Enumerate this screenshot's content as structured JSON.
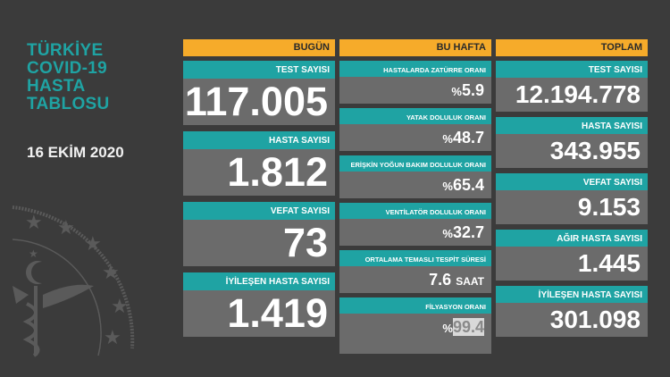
{
  "title": [
    "TÜRKİYE",
    "COVID-19",
    "HASTA",
    "TABLOSU"
  ],
  "date": "16 EKİM 2020",
  "colors": {
    "teal": "#1fa3a3",
    "orange": "#f6ab2a",
    "panel": "#6b6b6b",
    "background": "#3b3b3b"
  },
  "bugun": {
    "header": "BUGÜN",
    "items": [
      {
        "label": "TEST SAYISI",
        "value": "117.005"
      },
      {
        "label": "HASTA SAYISI",
        "value": "1.812"
      },
      {
        "label": "VEFAT SAYISI",
        "value": "73"
      },
      {
        "label": "İYİLEŞEN HASTA SAYISI",
        "value": "1.419"
      }
    ]
  },
  "bu_hafta": {
    "header": "BU HAFTA",
    "items": [
      {
        "label": "HASTALARDA ZATÜRRE ORANI",
        "prefix": "%",
        "value": "5.9",
        "suffix": ""
      },
      {
        "label": "YATAK DOLULUK ORANI",
        "prefix": "%",
        "value": "48.7",
        "suffix": ""
      },
      {
        "label": "ERİŞKİN YOĞUN BAKIM DOLULUK ORANI",
        "prefix": "%",
        "value": "65.4",
        "suffix": ""
      },
      {
        "label": "VENTİLATÖR DOLULUK ORANI",
        "prefix": "%",
        "value": "32.7",
        "suffix": ""
      },
      {
        "label": "ORTALAMA TEMASLI TESPİT SÜRESİ",
        "prefix": "",
        "value": "7.6",
        "suffix": "SAAT"
      },
      {
        "label": "FİLYASYON ORANI",
        "prefix": "%",
        "value": "99.4",
        "suffix": ""
      }
    ]
  },
  "toplam": {
    "header": "TOPLAM",
    "items": [
      {
        "label": "TEST SAYISI",
        "value": "12.194.778"
      },
      {
        "label": "HASTA SAYISI",
        "value": "343.955"
      },
      {
        "label": "VEFAT SAYISI",
        "value": "9.153"
      },
      {
        "label": "AĞIR HASTA SAYISI",
        "value": "1.445"
      },
      {
        "label": "İYİLEŞEN HASTA SAYISI",
        "value": "301.098"
      }
    ]
  }
}
